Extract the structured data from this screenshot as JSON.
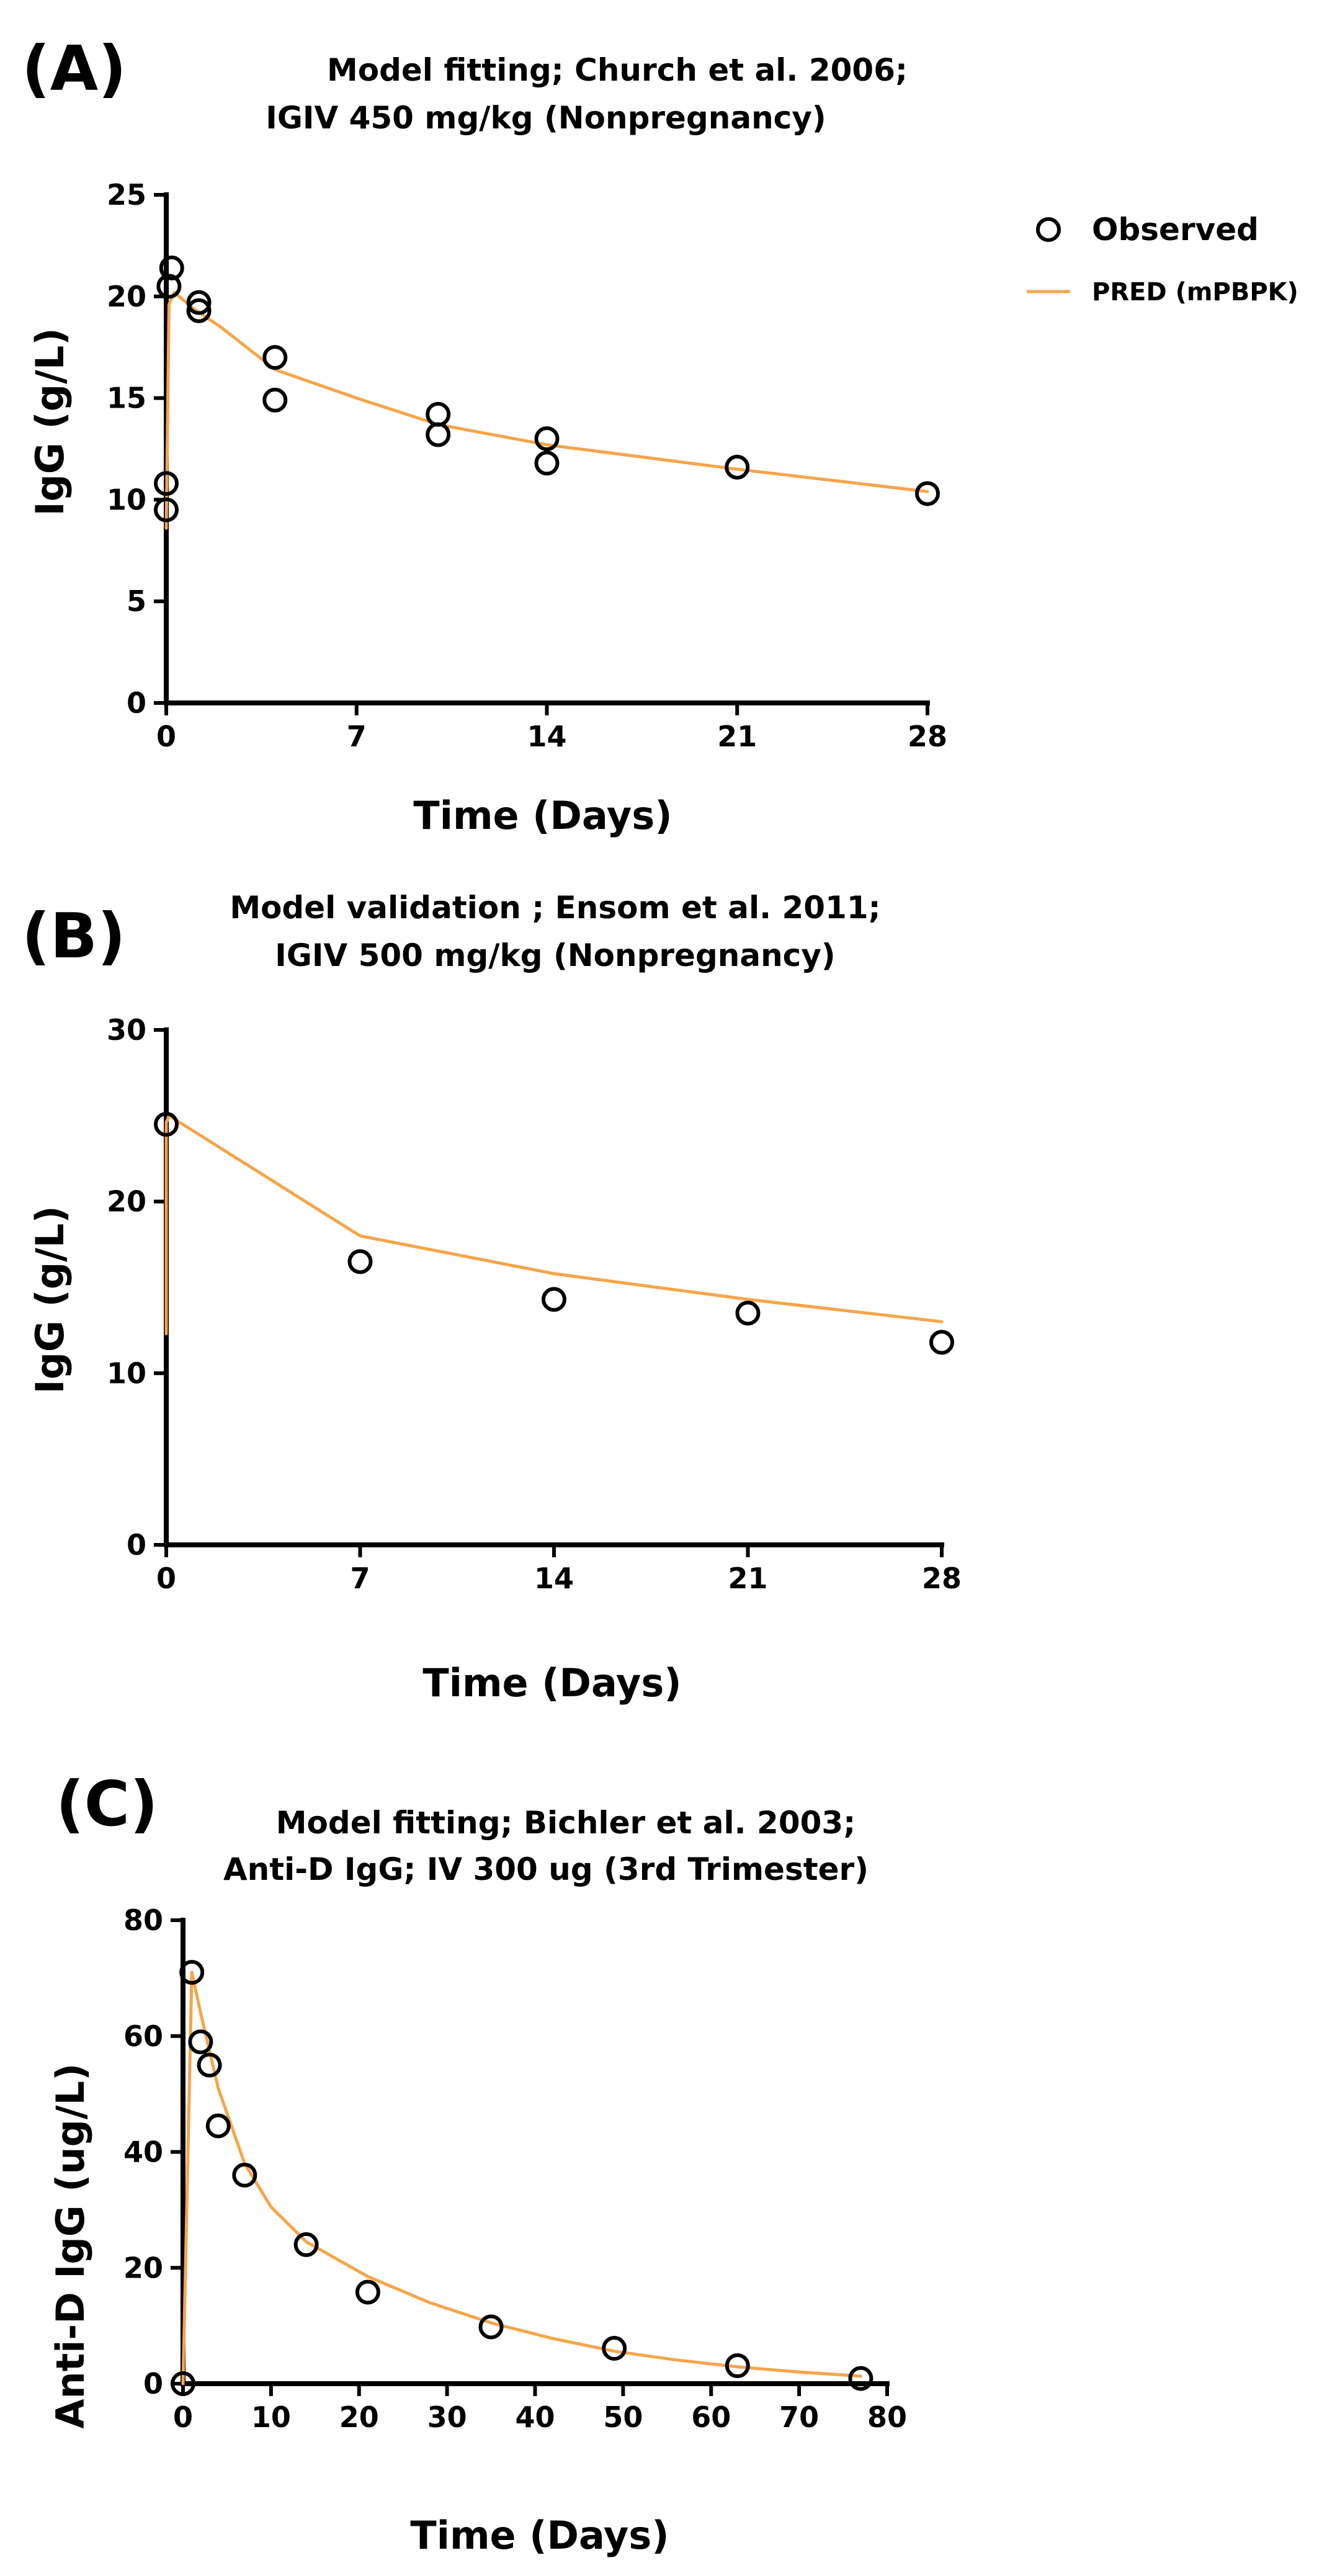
{
  "colors": {
    "pred": "#F5A54A",
    "observed": "#000000"
  },
  "legend": {
    "observed_label": "Observed",
    "pred_label": "PRED (mPBPK)",
    "observed_icon": "open-circle-marker-icon",
    "pred_icon": "orange-line-icon"
  },
  "chart_data": [
    {
      "id": "A",
      "panel_label": "(A)",
      "type": "scatter",
      "title": "Model fitting; Church et al. 2006;",
      "subtitle": "IGIV 450 mg/kg (Nonpregnancy)",
      "xlabel": "Time (Days)",
      "ylabel": "IgG  (g/L)",
      "xlim": [
        0,
        28
      ],
      "ylim": [
        0,
        25
      ],
      "xticks": [
        0,
        7,
        14,
        21,
        28
      ],
      "yticks": [
        0,
        5,
        10,
        15,
        20,
        25
      ],
      "grid": false,
      "legend_position": "top-right",
      "series": [
        {
          "name": "Observed",
          "kind": "points",
          "x": [
            0,
            0,
            0.1,
            0.2,
            1.2,
            1.2,
            4,
            4,
            10,
            10,
            14,
            14,
            21,
            28
          ],
          "y": [
            9.5,
            10.8,
            20.5,
            21.4,
            19.7,
            19.3,
            17.0,
            14.9,
            14.2,
            13.2,
            13.0,
            11.8,
            11.6,
            10.3
          ]
        },
        {
          "name": "PRED (mPBPK)",
          "kind": "line",
          "x": [
            0,
            0.1,
            0.3,
            1,
            2,
            4,
            7,
            10,
            14,
            21,
            28
          ],
          "y": [
            8.6,
            19.6,
            20.2,
            19.4,
            18.5,
            16.4,
            15.0,
            13.7,
            12.7,
            11.5,
            10.4
          ]
        }
      ]
    },
    {
      "id": "B",
      "panel_label": "(B)",
      "type": "scatter",
      "title": "Model validation ; Ensom et al. 2011;",
      "subtitle": "IGIV 500 mg/kg (Nonpregnancy)",
      "xlabel": "Time (Days)",
      "ylabel": "IgG  (g/L)",
      "xlim": [
        0,
        28
      ],
      "ylim": [
        0,
        30
      ],
      "xticks": [
        0,
        7,
        14,
        21,
        28
      ],
      "yticks": [
        0,
        10,
        20,
        30
      ],
      "grid": false,
      "series": [
        {
          "name": "Observed",
          "kind": "points",
          "x": [
            0,
            7,
            14,
            21,
            28
          ],
          "y": [
            24.5,
            16.5,
            14.3,
            13.5,
            11.8
          ]
        },
        {
          "name": "PRED (mPBPK)",
          "kind": "line",
          "x": [
            0,
            0,
            0.1,
            7,
            14,
            21,
            28
          ],
          "y": [
            12.3,
            24.6,
            25.0,
            18.0,
            15.8,
            14.3,
            13.0
          ]
        }
      ]
    },
    {
      "id": "C",
      "panel_label": "(C)",
      "type": "scatter",
      "title": "Model fitting; Bichler et al. 2003;",
      "subtitle": "Anti-D IgG; IV 300 ug (3rd Trimester)",
      "xlabel": "Time (Days)",
      "ylabel": "Anti-D IgG (ug/L)",
      "xlim": [
        0,
        80
      ],
      "ylim": [
        0,
        80
      ],
      "xticks": [
        0,
        10,
        20,
        30,
        40,
        50,
        60,
        70,
        80
      ],
      "yticks": [
        0,
        20,
        40,
        60,
        80
      ],
      "grid": false,
      "series": [
        {
          "name": "Observed",
          "kind": "points",
          "x": [
            0,
            1,
            2,
            3,
            4,
            7,
            14,
            21,
            35,
            49,
            63,
            77
          ],
          "y": [
            0,
            71,
            59,
            55,
            44.5,
            36,
            24,
            15.8,
            9.8,
            6.1,
            3.1,
            0.9
          ]
        },
        {
          "name": "PRED (mPBPK)",
          "kind": "line",
          "x": [
            0,
            1,
            2,
            4,
            7,
            10,
            14,
            21,
            28,
            35,
            42,
            49,
            56,
            63,
            70,
            77
          ],
          "y": [
            0,
            71,
            64,
            51,
            38,
            30.5,
            24.5,
            18.5,
            14,
            10.5,
            7.8,
            5.6,
            4.1,
            2.9,
            2.0,
            1.3
          ]
        }
      ]
    }
  ]
}
